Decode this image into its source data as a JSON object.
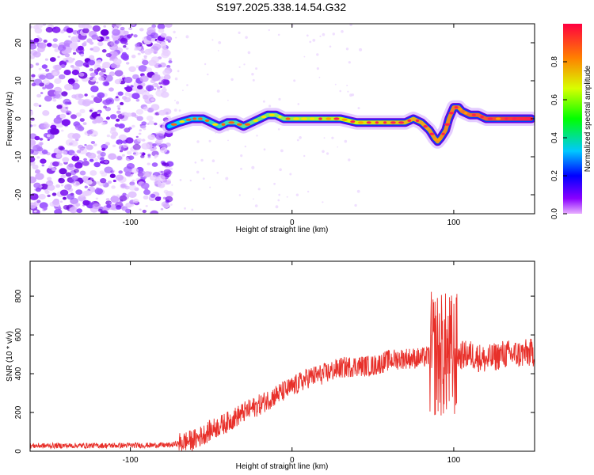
{
  "figure_title": "S197.2025.338.14.54.G32",
  "chart_data": [
    {
      "type": "heatmap",
      "title": "S197.2025.338.14.54.G32",
      "xlabel": "Height of straight line (km)",
      "ylabel": "Frequency (Hz)",
      "xlim": [
        -162,
        150
      ],
      "ylim": [
        -25,
        25
      ],
      "xticks": [
        -100,
        0,
        100
      ],
      "yticks": [
        -20,
        -10,
        0,
        10,
        20
      ],
      "noise_region_x": [
        -162,
        -75
      ],
      "ridge": {
        "x": [
          -76,
          -70,
          -62,
          -55,
          -50,
          -45,
          -40,
          -35,
          -30,
          -25,
          -20,
          -15,
          -10,
          -5,
          0,
          10,
          20,
          30,
          40,
          50,
          60,
          70,
          75,
          80,
          85,
          88,
          90,
          92,
          95,
          97,
          100,
          103,
          105,
          110,
          115,
          120,
          130,
          140,
          148
        ],
        "y": [
          -2,
          -1,
          0,
          0,
          -1,
          -2,
          -1,
          -1,
          -2,
          -1,
          0,
          1,
          1,
          0,
          0,
          0,
          0,
          0,
          -1,
          -1,
          -1,
          -1,
          0,
          -1,
          -3,
          -5,
          -6,
          -5,
          -3,
          0,
          3,
          3,
          2,
          1,
          1,
          0,
          0,
          0,
          0
        ]
      },
      "colorbar": {
        "label": "Normalized spectral amplitude",
        "range": [
          0.0,
          1.0
        ],
        "ticks": [
          0.0,
          0.2,
          0.4,
          0.6,
          0.8
        ]
      }
    },
    {
      "type": "line",
      "xlabel": "Height of straight line (km)",
      "ylabel": "SNR (10 * v/v)",
      "xlim": [
        -162,
        150
      ],
      "ylim": [
        0,
        980
      ],
      "xticks": [
        -100,
        0,
        100
      ],
      "yticks": [
        0,
        200,
        400,
        600,
        800
      ],
      "color": "#e8302a",
      "trend": {
        "x": [
          -162,
          -100,
          -75,
          -60,
          -50,
          -40,
          -30,
          -20,
          -10,
          0,
          10,
          20,
          30,
          40,
          50,
          60,
          70,
          80,
          88,
          100,
          110,
          120,
          130,
          140,
          150
        ],
        "y": [
          28,
          30,
          32,
          60,
          110,
          150,
          200,
          240,
          290,
          330,
          380,
          400,
          430,
          440,
          440,
          470,
          480,
          480,
          500,
          490,
          500,
          470,
          500,
          500,
          510
        ]
      },
      "noise_amplitude": [
        {
          "x_from": -162,
          "x_to": -70,
          "amp": 14
        },
        {
          "x_from": -70,
          "x_to": 85,
          "amp": 55
        },
        {
          "x_from": 85,
          "x_to": 102,
          "amp": 330
        },
        {
          "x_from": 102,
          "x_to": 150,
          "amp": 75
        }
      ]
    }
  ]
}
